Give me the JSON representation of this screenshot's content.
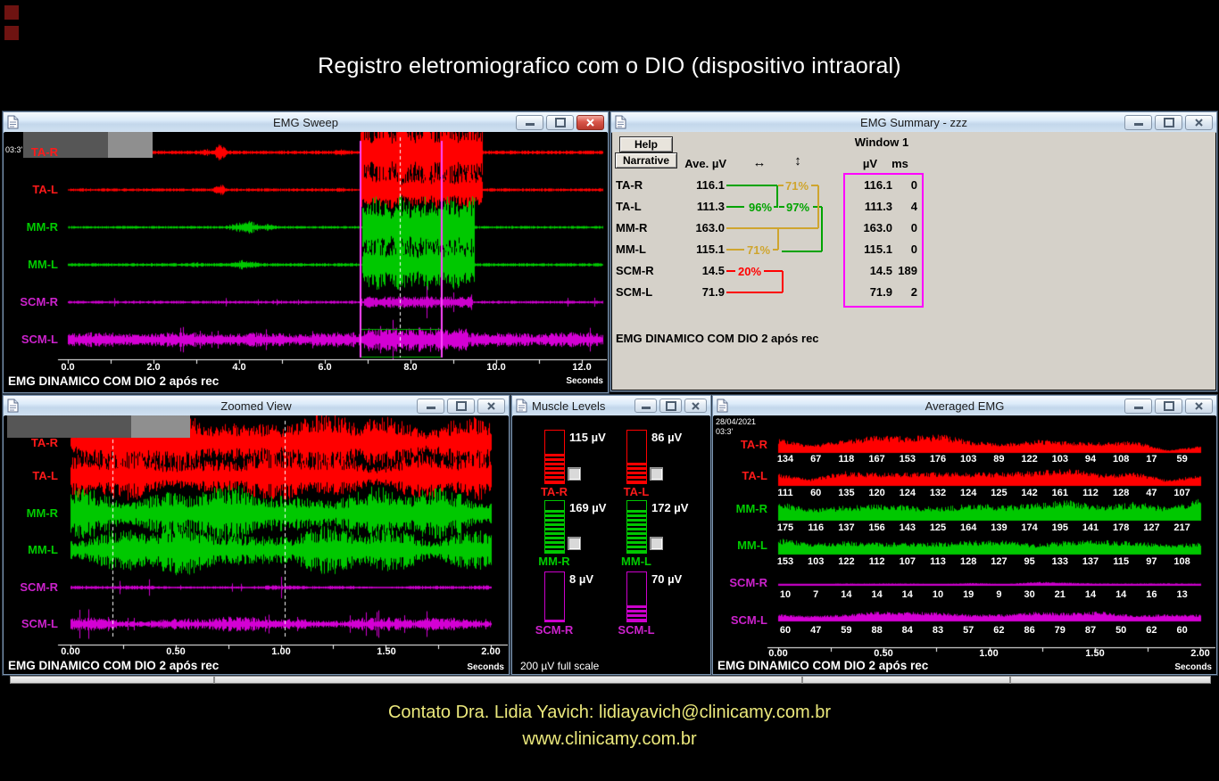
{
  "page": {
    "title": "Registro eletromiografico com o DIO (dispositivo intraoral)",
    "contact_line1": "Contato  Dra. Lidia Yavich:  lidiayavich@clinicamy.com.br",
    "contact_line2": "www.clinicamy.com.br"
  },
  "colors": {
    "red": "#ff0000",
    "green": "#00c800",
    "magenta": "#cc00cc",
    "percent_green": "#00a300",
    "percent_yellow": "#cfa52e",
    "percent_red": "#ff0000",
    "selection_line": "#ff46ff",
    "window1_box": "#ff00ff"
  },
  "channels": [
    "TA-R",
    "TA-L",
    "MM-R",
    "MM-L",
    "SCM-R",
    "SCM-L"
  ],
  "emg_sweep": {
    "title": "EMG Sweep",
    "timestamp": "03:3'",
    "x_ticks": [
      "0.0",
      "2.0",
      "4.0",
      "6.0",
      "8.0",
      "10.0",
      "12.0"
    ],
    "x_unit": "Seconds",
    "footer": "EMG DINAMICO COM DIO 2 após rec"
  },
  "emg_summary": {
    "title": "EMG Summary - zzz",
    "buttons": [
      "Help",
      "Narrative"
    ],
    "col_ave": "Ave. µV",
    "arrow_lr": "↔",
    "arrow_ud": "↕",
    "window_label": "Window 1",
    "col_uv": "µV",
    "col_ms": "ms",
    "rows": [
      {
        "ch": "TA-R",
        "ave": "116.1",
        "uv": "116.1",
        "ms": "0"
      },
      {
        "ch": "TA-L",
        "ave": "111.3",
        "uv": "111.3",
        "ms": "4"
      },
      {
        "ch": "MM-R",
        "ave": "163.0",
        "uv": "163.0",
        "ms": "0"
      },
      {
        "ch": "MM-L",
        "ave": "115.1",
        "uv": "115.1",
        "ms": "0"
      },
      {
        "ch": "SCM-R",
        "ave": "14.5",
        "uv": "14.5",
        "ms": "189"
      },
      {
        "ch": "SCM-L",
        "ave": "71.9",
        "uv": "71.9",
        "ms": "2"
      }
    ],
    "percents": {
      "ta_left_right": "96%",
      "mm_left_right": "71%",
      "scm_left_right": "20%",
      "ta_mm_right": "71%",
      "ta_mm_left": "97%"
    },
    "footer": "EMG DINAMICO COM DIO 2 após rec"
  },
  "zoomed_view": {
    "title": "Zoomed View",
    "x_ticks": [
      "0.00",
      "0.50",
      "1.00",
      "1.50",
      "2.00"
    ],
    "x_unit": "Seconds",
    "footer": "EMG DINAMICO COM DIO 2 após rec"
  },
  "muscle_levels": {
    "title": "Muscle Levels",
    "meters": [
      {
        "ch": "TA-R",
        "value": "115 µV",
        "uv": 115,
        "color": "red"
      },
      {
        "ch": "TA-L",
        "value": "86 µV",
        "uv": 86,
        "color": "red"
      },
      {
        "ch": "MM-R",
        "value": "169 µV",
        "uv": 169,
        "color": "green"
      },
      {
        "ch": "MM-L",
        "value": "172 µV",
        "uv": 172,
        "color": "green"
      },
      {
        "ch": "SCM-R",
        "value": "8 µV",
        "uv": 8,
        "color": "magenta"
      },
      {
        "ch": "SCM-L",
        "value": "70 µV",
        "uv": 70,
        "color": "magenta"
      }
    ],
    "full_scale": "200 µV full scale"
  },
  "averaged_emg": {
    "title": "Averaged EMG",
    "date": "28/04/2021",
    "time": "03:3'",
    "rows": [
      {
        "ch": "TA-R",
        "values": [
          134,
          67,
          118,
          167,
          153,
          176,
          103,
          89,
          122,
          103,
          94,
          108,
          17,
          59
        ]
      },
      {
        "ch": "TA-L",
        "values": [
          111,
          60,
          135,
          120,
          124,
          132,
          124,
          125,
          142,
          161,
          112,
          128,
          47,
          107
        ]
      },
      {
        "ch": "MM-R",
        "values": [
          175,
          116,
          137,
          156,
          143,
          125,
          164,
          139,
          174,
          195,
          141,
          178,
          127,
          217
        ]
      },
      {
        "ch": "MM-L",
        "values": [
          153,
          103,
          122,
          112,
          107,
          113,
          128,
          127,
          95,
          133,
          137,
          115,
          97,
          108
        ]
      },
      {
        "ch": "SCM-R",
        "values": [
          10,
          7,
          14,
          14,
          14,
          10,
          19,
          9,
          30,
          21,
          14,
          14,
          16,
          13
        ]
      },
      {
        "ch": "SCM-L",
        "values": [
          60,
          47,
          59,
          88,
          84,
          83,
          57,
          62,
          86,
          79,
          87,
          50,
          62,
          60
        ]
      }
    ],
    "x_ticks": [
      "0.00",
      "0.50",
      "1.00",
      "1.50",
      "2.00"
    ],
    "x_unit": "Seconds",
    "footer": "EMG DINAMICO COM DIO 2 após rec"
  }
}
